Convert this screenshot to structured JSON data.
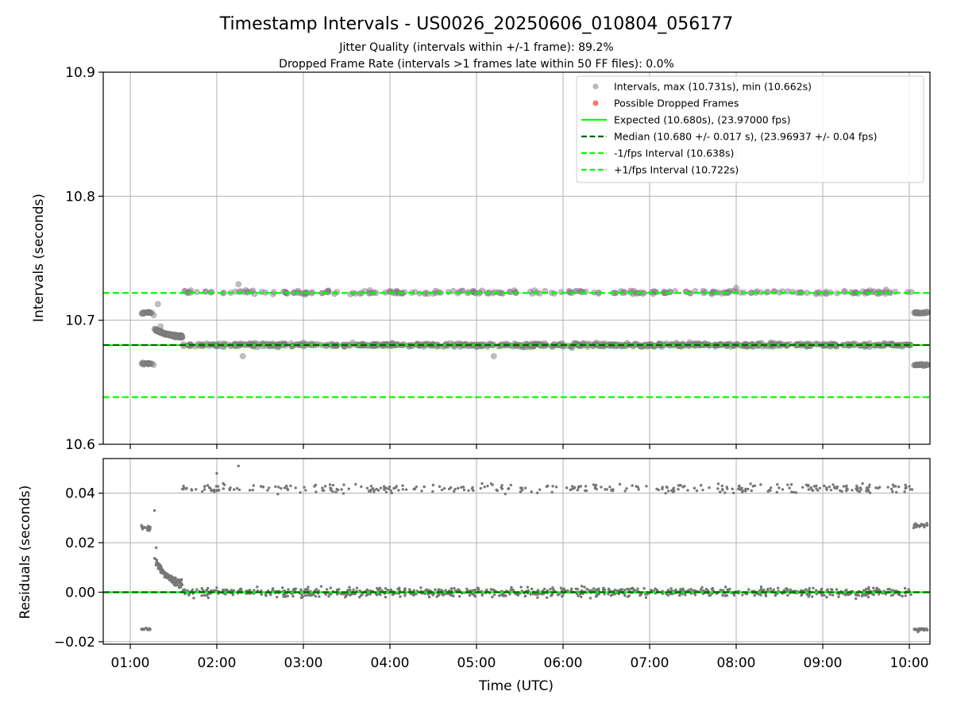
{
  "figure": {
    "title": "Timestamp Intervals - US0026_20250606_010804_056177",
    "subtitle_lines": [
      "Jitter Quality (intervals within +/-1 frame): 89.2%",
      "Dropped Frame Rate (intervals >1 frames late within 50 FF files): 0.0%"
    ],
    "colors": {
      "points": "#808080",
      "dropped": "#ff0000",
      "expected": "#00ff00",
      "median": "#006400",
      "fps_bounds": "#00ff00",
      "grid": "#b0b0b0"
    }
  },
  "chart_data": [
    {
      "type": "scatter",
      "panel": "top",
      "ylabel": "Intervals (seconds)",
      "xlim_hours": [
        0.67,
        10.22
      ],
      "ylim": [
        10.6,
        10.9
      ],
      "yticks": [
        "10.6",
        "10.7",
        "10.8",
        "10.9"
      ],
      "grid": true,
      "legend_position": "upper right",
      "legend": [
        {
          "label": "Intervals, max (10.731s), min (10.662s)",
          "kind": "marker",
          "color": "#a8a8a8"
        },
        {
          "label": "Possible Dropped Frames",
          "kind": "marker",
          "color": "#ff6666"
        },
        {
          "label": "Expected (10.680s), (23.97000 fps)",
          "kind": "line",
          "color": "#00ff00",
          "dash": "solid"
        },
        {
          "label": "Median (10.680 +/- 0.017 s), (23.96937 +/- 0.04 fps)",
          "kind": "line",
          "color": "#006400",
          "dash": "dashed"
        },
        {
          "label": "-1/fps Interval (10.638s)",
          "kind": "line",
          "color": "#00ff00",
          "dash": "dashed"
        },
        {
          "label": "+1/fps Interval (10.722s)",
          "kind": "line",
          "color": "#00ff00",
          "dash": "dashed"
        }
      ],
      "reference_lines": {
        "expected": 10.68,
        "median": 10.68,
        "minus_1fps": 10.638,
        "plus_1fps": 10.722
      },
      "series": [
        {
          "name": "Intervals",
          "description_points": [
            {
              "x": 1.25,
              "y": 10.706
            },
            {
              "x": 1.27,
              "y": 10.704
            },
            {
              "x": 1.25,
              "y": 10.665
            },
            {
              "x": 1.27,
              "y": 10.664
            },
            {
              "x": 1.32,
              "y": 10.713
            },
            {
              "x": 1.35,
              "y": 10.695
            },
            {
              "x": 1.45,
              "y": 10.688
            },
            {
              "x": 1.6,
              "y": 10.686
            },
            {
              "x": 1.7,
              "y": 10.724
            },
            {
              "x": 1.75,
              "y": 10.679
            },
            {
              "x": 2.25,
              "y": 10.729
            },
            {
              "x": 2.3,
              "y": 10.671
            },
            {
              "x": 5.2,
              "y": 10.671
            },
            {
              "x": 8.0,
              "y": 10.726
            },
            {
              "x": 10.2,
              "y": 10.707
            },
            {
              "x": 10.2,
              "y": 10.664
            }
          ],
          "bands": [
            {
              "x_start": 1.6,
              "x_end": 10.05,
              "y_center": 10.7225,
              "spread": 0.0025
            },
            {
              "x_start": 1.6,
              "x_end": 10.05,
              "y_center": 10.68,
              "spread": 0.0025
            }
          ]
        }
      ]
    },
    {
      "type": "scatter",
      "panel": "bottom",
      "xlabel": "Time (UTC)",
      "ylabel": "Residuals (seconds)",
      "xlim_hours": [
        0.67,
        10.22
      ],
      "ylim": [
        -0.021,
        0.054
      ],
      "yticks": [
        "−0.02",
        "0.00",
        "0.02",
        "0.04"
      ],
      "xticks": [
        "01:00",
        "02:00",
        "03:00",
        "04:00",
        "05:00",
        "06:00",
        "07:00",
        "08:00",
        "09:00",
        "10:00"
      ],
      "grid": true,
      "reference_lines": {
        "expected": 0.0,
        "median": 0.0
      },
      "series": [
        {
          "name": "Residuals",
          "bands": [
            {
              "x_start": 1.6,
              "x_end": 10.05,
              "y_center": 0.042,
              "spread": 0.003
            },
            {
              "x_start": 1.6,
              "x_end": 10.05,
              "y_center": 0.0,
              "spread": 0.003
            }
          ],
          "description_points": [
            {
              "x": 1.13,
              "y": -0.015
            },
            {
              "x": 1.2,
              "y": -0.015
            },
            {
              "x": 1.13,
              "y": 0.027
            },
            {
              "x": 1.2,
              "y": 0.025
            },
            {
              "x": 1.28,
              "y": 0.033
            },
            {
              "x": 1.3,
              "y": 0.018
            },
            {
              "x": 1.4,
              "y": 0.008
            },
            {
              "x": 2.25,
              "y": 0.051
            },
            {
              "x": 2.0,
              "y": 0.048
            },
            {
              "x": 10.05,
              "y": 0.026
            },
            {
              "x": 10.1,
              "y": -0.016
            }
          ]
        }
      ]
    }
  ]
}
